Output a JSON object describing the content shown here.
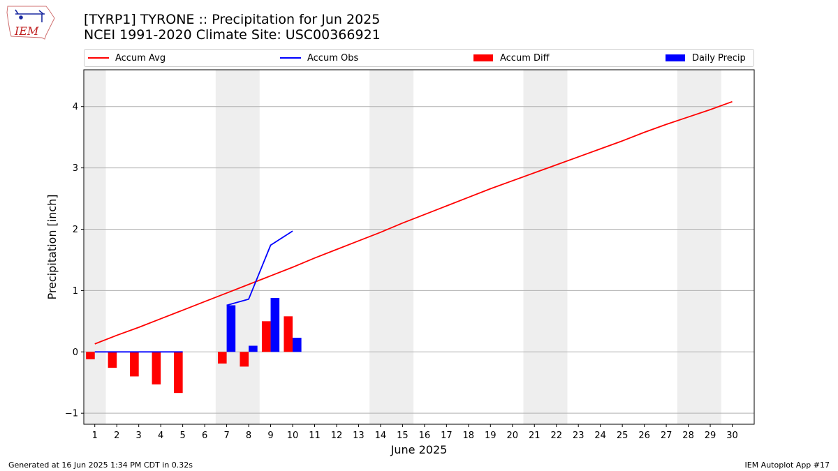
{
  "logo": {
    "text": "IEM"
  },
  "header": {
    "title_line1": "[TYRP1] TYRONE :: Precipitation for Jun 2025",
    "title_line2": "NCEI 1991-2020 Climate Site: USC00366921"
  },
  "footer": {
    "left": "Generated at 16 Jun 2025 1:34 PM CDT in 0.32s",
    "right": "IEM Autoplot App #17"
  },
  "colors": {
    "avg": "#ff0000",
    "obs": "#0000ff",
    "diff": "#ff0000",
    "daily": "#0000ff",
    "weekend": "#eeeeee",
    "grid": "#b0b0b0"
  },
  "chart_data": {
    "type": "bar",
    "title": "[TYRP1] TYRONE :: Precipitation for Jun 2025",
    "subtitle": "NCEI 1991-2020 Climate Site: USC00366921",
    "xlabel": "June 2025",
    "ylabel": "Precipitation [inch]",
    "xlim": [
      0.5,
      31
    ],
    "ylim": [
      -1.18,
      4.6
    ],
    "yticks": [
      -1,
      0,
      1,
      2,
      3,
      4
    ],
    "ytick_labels": [
      "−1",
      "0",
      "1",
      "2",
      "3",
      "4"
    ],
    "x": [
      1,
      2,
      3,
      4,
      5,
      6,
      7,
      8,
      9,
      10,
      11,
      12,
      13,
      14,
      15,
      16,
      17,
      18,
      19,
      20,
      21,
      22,
      23,
      24,
      25,
      26,
      27,
      28,
      29,
      30
    ],
    "weekend_spans": [
      [
        0.5,
        1.5
      ],
      [
        6.5,
        8.5
      ],
      [
        13.5,
        15.5
      ],
      [
        20.5,
        22.5
      ],
      [
        27.5,
        29.5
      ]
    ],
    "legend": [
      "Accum Avg",
      "Accum Obs",
      "Accum Diff",
      "Daily Precip"
    ],
    "series": [
      {
        "name": "Accum Avg",
        "kind": "line",
        "values": [
          0.13,
          0.27,
          0.4,
          0.54,
          0.68,
          0.82,
          0.96,
          1.1,
          1.24,
          1.38,
          1.53,
          1.67,
          1.81,
          1.95,
          2.1,
          2.24,
          2.38,
          2.52,
          2.66,
          2.79,
          2.92,
          3.05,
          3.18,
          3.31,
          3.44,
          3.58,
          3.71,
          3.83,
          3.95,
          4.08
        ]
      },
      {
        "name": "Accum Obs",
        "kind": "line",
        "segments": [
          {
            "x": [
              1,
              2,
              3,
              4,
              5
            ],
            "values": [
              0,
              0,
              0,
              0,
              0
            ]
          },
          {
            "x": [
              7,
              8,
              9,
              10
            ],
            "values": [
              0.76,
              0.86,
              1.74,
              1.97
            ]
          }
        ]
      },
      {
        "name": "Accum Diff",
        "kind": "bar",
        "offset": -0.2,
        "x": [
          1,
          2,
          3,
          4,
          5,
          7,
          8,
          9,
          10
        ],
        "values": [
          -0.12,
          -0.26,
          -0.4,
          -0.53,
          -0.67,
          -0.19,
          -0.24,
          0.5,
          0.58
        ]
      },
      {
        "name": "Daily Precip",
        "kind": "bar",
        "offset": 0.2,
        "x": [
          1,
          2,
          3,
          4,
          5,
          7,
          8,
          9,
          10
        ],
        "values": [
          0,
          0,
          0,
          0,
          0,
          0.76,
          0.1,
          0.88,
          0.23
        ]
      }
    ]
  }
}
